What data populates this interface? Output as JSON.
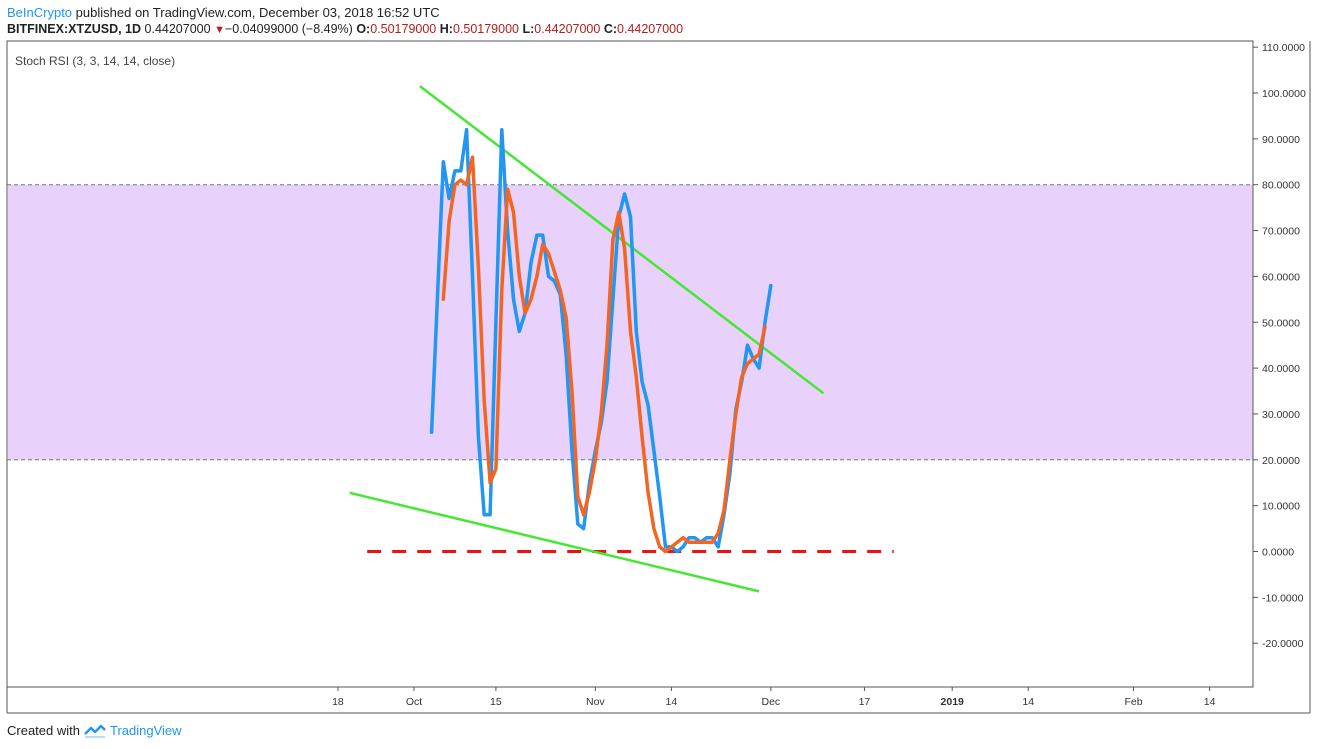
{
  "header": {
    "publisher": "BeInCrypto",
    "published_text": "published on TradingView.com, December 03, 2018 16:52 UTC",
    "symbol": "BITFINEX:XTZUSD, 1D",
    "last": "0.44207000",
    "change": "−0.04099000 (−8.49%)",
    "o_label": "O:",
    "o_val": "0.50179000",
    "h_label": "H:",
    "h_val": "0.50179000",
    "l_label": "L:",
    "l_val": "0.44207000",
    "c_label": "C:",
    "c_val": "0.44207000",
    "down_arrow": "▼"
  },
  "footer": {
    "created_with": "Created with",
    "brand": "TradingView"
  },
  "chart_data": {
    "type": "line",
    "title": "Stoch RSI (3, 3, 14, 14, close)",
    "ylim": [
      -30,
      110
    ],
    "y_ticks": [
      {
        "v": 110,
        "label": "110.0000"
      },
      {
        "v": 100,
        "label": "100.0000"
      },
      {
        "v": 90,
        "label": "90.0000"
      },
      {
        "v": 80,
        "label": "80.0000"
      },
      {
        "v": 70,
        "label": "70.0000"
      },
      {
        "v": 60,
        "label": "60.0000"
      },
      {
        "v": 50,
        "label": "50.0000"
      },
      {
        "v": 40,
        "label": "40.0000"
      },
      {
        "v": 30,
        "label": "30.0000"
      },
      {
        "v": 20,
        "label": "20.0000"
      },
      {
        "v": 10,
        "label": "10.0000"
      },
      {
        "v": 0,
        "label": "0.0000"
      },
      {
        "v": -10,
        "label": "-10.0000"
      },
      {
        "v": -20,
        "label": "-20.0000"
      }
    ],
    "x_ticks": [
      {
        "d": -13,
        "label": "18",
        "bold": false
      },
      {
        "d": 0,
        "label": "Oct",
        "bold": false
      },
      {
        "d": 14,
        "label": "15",
        "bold": false
      },
      {
        "d": 31,
        "label": "Nov",
        "bold": false
      },
      {
        "d": 44,
        "label": "14",
        "bold": false
      },
      {
        "d": 61,
        "label": "Dec",
        "bold": false
      },
      {
        "d": 77,
        "label": "17",
        "bold": false
      },
      {
        "d": 92,
        "label": "2019",
        "bold": true
      },
      {
        "d": 105,
        "label": "14",
        "bold": false
      },
      {
        "d": 123,
        "label": "Feb",
        "bold": false
      },
      {
        "d": 136,
        "label": "14",
        "bold": false
      }
    ],
    "band": {
      "lower": 20,
      "upper": 80,
      "color": "#e8d1fb"
    },
    "series": [
      {
        "color": "#2196f3",
        "points": [
          [
            3,
            26
          ],
          [
            5,
            85
          ],
          [
            6,
            77
          ],
          [
            7,
            83
          ],
          [
            8,
            83
          ],
          [
            9,
            92
          ],
          [
            10,
            60
          ],
          [
            11,
            25
          ],
          [
            12,
            8
          ],
          [
            13,
            8
          ],
          [
            14,
            50
          ],
          [
            15,
            92
          ],
          [
            16,
            70
          ],
          [
            17,
            55
          ],
          [
            18,
            48
          ],
          [
            19,
            52
          ],
          [
            20,
            63
          ],
          [
            21,
            69
          ],
          [
            22,
            69
          ],
          [
            23,
            60
          ],
          [
            24,
            59
          ],
          [
            25,
            56
          ],
          [
            26,
            43
          ],
          [
            27,
            22
          ],
          [
            28,
            6
          ],
          [
            29,
            5
          ],
          [
            30,
            15
          ],
          [
            31,
            22
          ],
          [
            32,
            28
          ],
          [
            33,
            37
          ],
          [
            34,
            55
          ],
          [
            35,
            73
          ],
          [
            36,
            78
          ],
          [
            37,
            73
          ],
          [
            38,
            48
          ],
          [
            39,
            37
          ],
          [
            40,
            32
          ],
          [
            41,
            22
          ],
          [
            42,
            12
          ],
          [
            43,
            1
          ],
          [
            44,
            1
          ],
          [
            45,
            0
          ],
          [
            46,
            1
          ],
          [
            47,
            3
          ],
          [
            48,
            3
          ],
          [
            49,
            2
          ],
          [
            50,
            3
          ],
          [
            51,
            3
          ],
          [
            52,
            1
          ],
          [
            53,
            8
          ],
          [
            54,
            17
          ],
          [
            55,
            31
          ],
          [
            56,
            37
          ],
          [
            57,
            45
          ],
          [
            58,
            42
          ],
          [
            59,
            40
          ],
          [
            60,
            50
          ],
          [
            61,
            58
          ]
        ]
      },
      {
        "color": "#f26522",
        "points": [
          [
            5,
            55
          ],
          [
            6,
            72
          ],
          [
            7,
            80
          ],
          [
            8,
            81
          ],
          [
            9,
            80
          ],
          [
            10,
            86
          ],
          [
            11,
            62
          ],
          [
            12,
            33
          ],
          [
            13,
            15
          ],
          [
            14,
            18
          ],
          [
            15,
            57
          ],
          [
            16,
            79
          ],
          [
            17,
            74
          ],
          [
            18,
            60
          ],
          [
            19,
            52
          ],
          [
            20,
            55
          ],
          [
            21,
            60
          ],
          [
            22,
            67
          ],
          [
            23,
            65
          ],
          [
            24,
            61
          ],
          [
            25,
            57
          ],
          [
            26,
            51
          ],
          [
            27,
            35
          ],
          [
            28,
            12
          ],
          [
            29,
            8
          ],
          [
            30,
            13
          ],
          [
            31,
            20
          ],
          [
            32,
            30
          ],
          [
            33,
            45
          ],
          [
            34,
            68
          ],
          [
            35,
            74
          ],
          [
            36,
            66
          ],
          [
            37,
            48
          ],
          [
            38,
            38
          ],
          [
            39,
            25
          ],
          [
            40,
            13
          ],
          [
            41,
            5
          ],
          [
            42,
            1
          ],
          [
            43,
            0
          ],
          [
            44,
            1
          ],
          [
            45,
            2
          ],
          [
            46,
            3
          ],
          [
            47,
            2
          ],
          [
            48,
            2
          ],
          [
            49,
            2
          ],
          [
            50,
            2
          ],
          [
            51,
            2
          ],
          [
            52,
            4
          ],
          [
            53,
            9
          ],
          [
            54,
            20
          ],
          [
            55,
            30
          ],
          [
            56,
            38
          ],
          [
            57,
            41
          ],
          [
            58,
            42
          ],
          [
            59,
            43
          ],
          [
            60,
            49
          ]
        ]
      }
    ],
    "trendlines": [
      {
        "color": "#44e832",
        "from": [
          1,
          101.5
        ],
        "to": [
          70,
          34.5
        ]
      },
      {
        "color": "#44e832",
        "from": [
          -11,
          12.8
        ],
        "to": [
          59,
          -8.7
        ]
      }
    ],
    "hline": {
      "value": 0,
      "color": "#ee1111",
      "from": -8,
      "to": 82,
      "dashed": true
    }
  }
}
